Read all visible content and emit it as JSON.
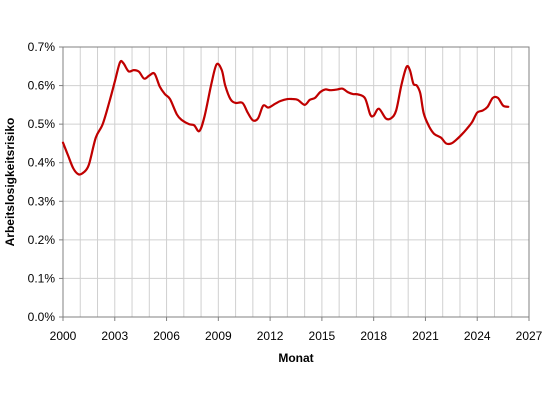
{
  "chart_data": {
    "type": "line",
    "title": "",
    "xlabel": "Monat",
    "ylabel": "Arbeitslosigkeitsrisiko",
    "xlim": [
      2000,
      2027
    ],
    "ylim": [
      0,
      0.7
    ],
    "grid": true,
    "legend": "none",
    "x_ticks": [
      "2000",
      "2003",
      "2006",
      "2009",
      "2012",
      "2015",
      "2018",
      "2021",
      "2024",
      "2027"
    ],
    "y_ticks": [
      "0.0%",
      "0.1%",
      "0.2%",
      "0.3%",
      "0.4%",
      "0.5%",
      "0.6%",
      "0.7%"
    ],
    "series": [
      {
        "color": "#c00000",
        "x": [
          2000.0,
          2000.3,
          2000.6,
          2000.9,
          2001.2,
          2001.5,
          2001.9,
          2002.3,
          2002.7,
          2003.0,
          2003.3,
          2003.5,
          2003.8,
          2004.1,
          2004.4,
          2004.7,
          2005.0,
          2005.3,
          2005.6,
          2005.9,
          2006.2,
          2006.6,
          2006.9,
          2007.3,
          2007.6,
          2007.9,
          2008.2,
          2008.6,
          2008.9,
          2009.2,
          2009.4,
          2009.7,
          2010.0,
          2010.4,
          2010.7,
          2011.0,
          2011.3,
          2011.6,
          2011.9,
          2012.3,
          2012.6,
          2013.0,
          2013.3,
          2013.6,
          2014.0,
          2014.3,
          2014.6,
          2014.9,
          2015.2,
          2015.5,
          2015.9,
          2016.2,
          2016.5,
          2016.8,
          2017.1,
          2017.5,
          2017.8,
          2018.0,
          2018.3,
          2018.7,
          2019.0,
          2019.3,
          2019.6,
          2019.9,
          2020.1,
          2020.3,
          2020.5,
          2020.7,
          2020.9,
          2021.2,
          2021.5,
          2021.9,
          2022.2,
          2022.5,
          2022.8,
          2023.1,
          2023.4,
          2023.7,
          2024.0,
          2024.3,
          2024.6,
          2024.9,
          2025.2,
          2025.5,
          2025.8
        ],
        "y": [
          0.452,
          0.418,
          0.385,
          0.37,
          0.375,
          0.395,
          0.465,
          0.5,
          0.56,
          0.61,
          0.66,
          0.658,
          0.637,
          0.64,
          0.636,
          0.618,
          0.626,
          0.631,
          0.598,
          0.578,
          0.565,
          0.525,
          0.51,
          0.5,
          0.497,
          0.482,
          0.52,
          0.605,
          0.655,
          0.64,
          0.6,
          0.565,
          0.555,
          0.555,
          0.53,
          0.51,
          0.515,
          0.548,
          0.543,
          0.553,
          0.56,
          0.565,
          0.565,
          0.563,
          0.55,
          0.563,
          0.568,
          0.583,
          0.59,
          0.588,
          0.59,
          0.592,
          0.583,
          0.578,
          0.577,
          0.567,
          0.525,
          0.522,
          0.54,
          0.515,
          0.515,
          0.535,
          0.6,
          0.648,
          0.64,
          0.605,
          0.6,
          0.58,
          0.528,
          0.495,
          0.475,
          0.465,
          0.45,
          0.45,
          0.46,
          0.473,
          0.488,
          0.505,
          0.53,
          0.535,
          0.545,
          0.568,
          0.568,
          0.548,
          0.545
        ]
      }
    ]
  }
}
